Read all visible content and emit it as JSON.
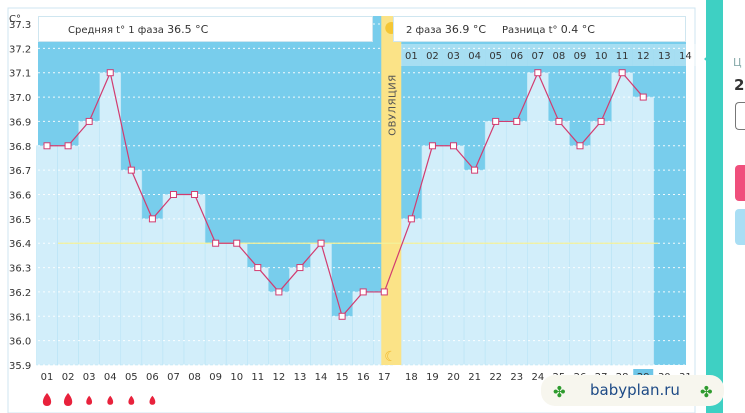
{
  "unit_label": "C°",
  "header": {
    "phase1_label": "Средняя t° 1 фаза",
    "phase1_value": "36.5 °C",
    "phase2_label": "2 фаза",
    "phase2_value": "36.9 °C",
    "diff_label": "Разница t°",
    "diff_value": "0.4 °C"
  },
  "ovulation_label": "ОВУЛЯЦИЯ",
  "icons": {
    "sun": "sun-icon",
    "moon": "moon-icon",
    "drop": "blood-drop-icon",
    "clover": "clover-icon"
  },
  "watermark": "babyplan.ru",
  "sidebar": {
    "label_partial": "Ц",
    "value_partial": "2"
  },
  "colors": {
    "bg_fill": "#78cdec",
    "bar_fill": "#d2eefa",
    "line": "#d23c70",
    "ovulation": "#fbe387",
    "coverline": "#f3f19a",
    "text": "#333333",
    "drop": "#e8223c",
    "accent": "#3ed0c3"
  },
  "chart_data": {
    "type": "line",
    "ylim": [
      35.9,
      37.3
    ],
    "yticks": [
      "35.9",
      "36.0",
      "36.1",
      "36.2",
      "36.3",
      "36.4",
      "36.5",
      "36.6",
      "36.7",
      "36.8",
      "36.9",
      "37.0",
      "37.1",
      "37.2",
      "37.3"
    ],
    "coverline": 36.4,
    "ovulation_index": 16,
    "x": [
      "01",
      "02",
      "03",
      "04",
      "05",
      "06",
      "07",
      "08",
      "09",
      "10",
      "11",
      "12",
      "13",
      "14",
      "15",
      "16",
      "17",
      "18",
      "19",
      "20",
      "21",
      "22",
      "23",
      "24",
      "25",
      "26",
      "27",
      "28",
      "29",
      "30",
      "31"
    ],
    "temps": [
      36.8,
      36.8,
      36.9,
      37.1,
      36.7,
      36.5,
      36.6,
      36.6,
      36.4,
      36.4,
      36.3,
      36.2,
      36.3,
      36.4,
      36.1,
      36.2,
      36.2,
      36.5,
      36.8,
      36.8,
      36.7,
      36.9,
      36.9,
      37.1,
      36.9,
      36.8,
      36.9,
      37.1,
      37.0
    ],
    "phase2_days": [
      "01",
      "02",
      "03",
      "04",
      "05",
      "06",
      "07",
      "08",
      "09",
      "10",
      "11",
      "12",
      "13",
      "14"
    ],
    "bleeding_days": [
      {
        "day": "01",
        "level": 3
      },
      {
        "day": "02",
        "level": 3
      },
      {
        "day": "03",
        "level": 2
      },
      {
        "day": "04",
        "level": 2
      },
      {
        "day": "05",
        "level": 2
      },
      {
        "day": "06",
        "level": 2
      }
    ]
  }
}
